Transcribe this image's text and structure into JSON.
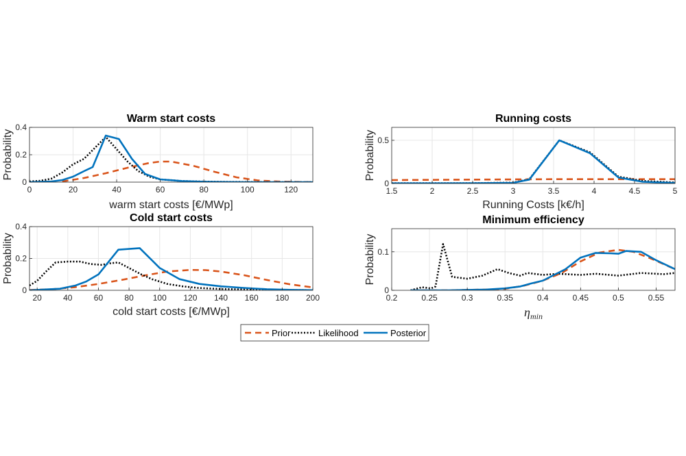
{
  "colors": {
    "prior": "#D95319",
    "likelihood": "#000000",
    "posterior": "#0072BD",
    "grid": "#e6e6e6",
    "axis": "#262626"
  },
  "legend": {
    "items": [
      {
        "key": "prior",
        "label": "Prior",
        "style": "dashed"
      },
      {
        "key": "likelihood",
        "label": "Likelihood",
        "style": "dotted"
      },
      {
        "key": "posterior",
        "label": "Posterior",
        "style": "solid"
      }
    ]
  },
  "chart_data": [
    {
      "type": "line",
      "title": "Warm start costs",
      "xlabel": "warm start costs [€/MWp]",
      "ylabel": "Probability",
      "xlim": [
        0,
        130
      ],
      "ylim": [
        0,
        0.4
      ],
      "xticks": [
        0,
        20,
        40,
        60,
        80,
        100,
        120
      ],
      "yticks": [
        0,
        0.2,
        0.4
      ],
      "grid": true,
      "series": [
        {
          "name": "Prior",
          "x": [
            15,
            25,
            35,
            45,
            55,
            60,
            65,
            75,
            85,
            95,
            105,
            115,
            125,
            130
          ],
          "y": [
            0.005,
            0.03,
            0.065,
            0.105,
            0.14,
            0.15,
            0.15,
            0.12,
            0.075,
            0.035,
            0.012,
            0.004,
            0.001,
            0.0
          ]
        },
        {
          "name": "Likelihood",
          "x": [
            0,
            5,
            10,
            15,
            20,
            25,
            30,
            35,
            40,
            45,
            50,
            55,
            60,
            70,
            80,
            90,
            100,
            110,
            120,
            130
          ],
          "y": [
            0.005,
            0.01,
            0.025,
            0.07,
            0.13,
            0.17,
            0.25,
            0.33,
            0.24,
            0.15,
            0.08,
            0.04,
            0.02,
            0.008,
            0.004,
            0.002,
            0.001,
            0.0,
            0.0,
            0.0
          ]
        },
        {
          "name": "Posterior",
          "x": [
            0,
            5,
            10,
            15,
            20,
            25,
            29,
            35,
            41,
            47,
            53,
            60,
            70,
            80,
            90,
            100,
            110,
            120,
            130
          ],
          "y": [
            0.0,
            0.002,
            0.005,
            0.015,
            0.04,
            0.08,
            0.11,
            0.34,
            0.315,
            0.17,
            0.06,
            0.02,
            0.008,
            0.003,
            0.001,
            0.0,
            0.0,
            0.0,
            0.0
          ]
        }
      ]
    },
    {
      "type": "line",
      "title": "Running costs",
      "xlabel": "Running Costs [k€/h]",
      "ylabel": "Probability",
      "xlim": [
        1.5,
        5
      ],
      "ylim": [
        0,
        0.65
      ],
      "xticks": [
        1.5,
        2,
        2.5,
        3,
        3.5,
        4,
        4.5,
        5
      ],
      "yticks": [
        0,
        0.5
      ],
      "grid": true,
      "series": [
        {
          "name": "Prior",
          "x": [
            1.5,
            2.5,
            3.5,
            4.5,
            5
          ],
          "y": [
            0.04,
            0.045,
            0.05,
            0.05,
            0.05
          ]
        },
        {
          "name": "Likelihood",
          "x": [
            1.5,
            2,
            2.5,
            3,
            3.2,
            3.57,
            3.95,
            4.3,
            4.6,
            5
          ],
          "y": [
            0.003,
            0.003,
            0.004,
            0.01,
            0.05,
            0.5,
            0.36,
            0.08,
            0.03,
            0.012
          ]
        },
        {
          "name": "Posterior",
          "x": [
            1.5,
            2,
            2.5,
            3,
            3.2,
            3.57,
            3.95,
            4.3,
            4.6,
            5
          ],
          "y": [
            0.002,
            0.002,
            0.003,
            0.008,
            0.045,
            0.5,
            0.35,
            0.07,
            0.02,
            0.006
          ]
        }
      ]
    },
    {
      "type": "line",
      "title": "Cold start costs",
      "xlabel": "cold start costs [€/MWp]",
      "ylabel": "Probability",
      "xlim": [
        15,
        200
      ],
      "ylim": [
        0,
        0.4
      ],
      "xticks": [
        20,
        40,
        60,
        80,
        100,
        120,
        140,
        160,
        180,
        200
      ],
      "yticks": [
        0,
        0.2,
        0.4
      ],
      "grid": true,
      "series": [
        {
          "name": "Prior",
          "x": [
            15,
            30,
            45,
            60,
            75,
            90,
            105,
            120,
            130,
            140,
            155,
            170,
            185,
            200
          ],
          "y": [
            0.002,
            0.007,
            0.02,
            0.04,
            0.065,
            0.093,
            0.118,
            0.128,
            0.127,
            0.118,
            0.095,
            0.065,
            0.038,
            0.018
          ]
        },
        {
          "name": "Likelihood",
          "x": [
            15,
            20,
            25,
            32,
            40,
            48,
            55,
            62,
            68,
            73,
            80,
            88,
            95,
            105,
            115,
            125,
            140,
            160,
            180,
            200
          ],
          "y": [
            0.03,
            0.06,
            0.11,
            0.175,
            0.18,
            0.18,
            0.165,
            0.16,
            0.17,
            0.175,
            0.14,
            0.1,
            0.07,
            0.04,
            0.025,
            0.015,
            0.008,
            0.004,
            0.002,
            0.001
          ]
        },
        {
          "name": "Posterior",
          "x": [
            15,
            25,
            35,
            45,
            52,
            60,
            73,
            87,
            100,
            113,
            126,
            140,
            155,
            170,
            185,
            200
          ],
          "y": [
            0.0,
            0.005,
            0.01,
            0.03,
            0.055,
            0.1,
            0.255,
            0.265,
            0.14,
            0.07,
            0.04,
            0.025,
            0.015,
            0.007,
            0.003,
            0.001
          ]
        }
      ]
    },
    {
      "type": "line",
      "title": "Minimum efficiency",
      "xlabel": "η_min",
      "xlabel_symbol": "η",
      "xlabel_sub": "min",
      "ylabel": "Probability",
      "xlim": [
        0.2,
        0.575
      ],
      "ylim": [
        0,
        0.16
      ],
      "xticks": [
        0.2,
        0.25,
        0.3,
        0.35,
        0.4,
        0.45,
        0.5,
        0.55
      ],
      "xticklabels": [
        "0.2",
        "0.25",
        "0.3",
        "0.35",
        "0.4",
        "0.45",
        "0.5",
        "0.55"
      ],
      "yticks": [
        0,
        0.1
      ],
      "grid": true,
      "series": [
        {
          "name": "Prior",
          "x": [
            0.225,
            0.25,
            0.275,
            0.3,
            0.325,
            0.35,
            0.375,
            0.4,
            0.425,
            0.45,
            0.475,
            0.5,
            0.52,
            0.54,
            0.56,
            0.575
          ],
          "y": [
            0.0,
            0.0,
            0.0,
            0.001,
            0.002,
            0.004,
            0.012,
            0.025,
            0.045,
            0.075,
            0.098,
            0.105,
            0.1,
            0.085,
            0.068,
            0.055
          ]
        },
        {
          "name": "Likelihood",
          "x": [
            0.225,
            0.24,
            0.252,
            0.258,
            0.268,
            0.28,
            0.3,
            0.32,
            0.34,
            0.355,
            0.37,
            0.38,
            0.4,
            0.42,
            0.45,
            0.47,
            0.5,
            0.53,
            0.56,
            0.575
          ],
          "y": [
            0.0,
            0.008,
            0.005,
            0.01,
            0.12,
            0.035,
            0.03,
            0.038,
            0.055,
            0.045,
            0.038,
            0.045,
            0.04,
            0.043,
            0.04,
            0.043,
            0.038,
            0.045,
            0.042,
            0.045
          ]
        },
        {
          "name": "Posterior",
          "x": [
            0.225,
            0.25,
            0.275,
            0.3,
            0.325,
            0.35,
            0.37,
            0.385,
            0.4,
            0.415,
            0.43,
            0.45,
            0.47,
            0.49,
            0.5,
            0.51,
            0.53,
            0.55,
            0.575
          ],
          "y": [
            0.0,
            0.0,
            0.0,
            0.001,
            0.002,
            0.005,
            0.01,
            0.018,
            0.025,
            0.04,
            0.055,
            0.085,
            0.097,
            0.096,
            0.095,
            0.102,
            0.1,
            0.078,
            0.055
          ]
        }
      ]
    }
  ]
}
